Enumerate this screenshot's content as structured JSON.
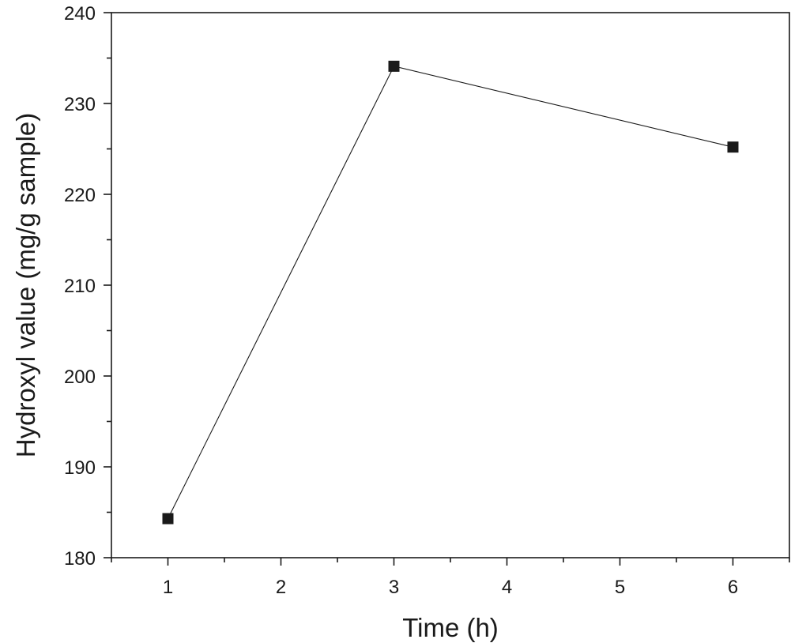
{
  "chart_data": {
    "type": "line",
    "title": "",
    "xlabel": "Time (h)",
    "ylabel": "Hydroxyl value (mg/g sample)",
    "xlim": [
      0.5,
      6.5
    ],
    "ylim": [
      180,
      240
    ],
    "x_ticks": [
      "1",
      "2",
      "3",
      "4",
      "5",
      "6"
    ],
    "y_ticks": [
      "180",
      "190",
      "200",
      "210",
      "220",
      "230",
      "240"
    ],
    "grid": false,
    "legend": "none",
    "marker": "square",
    "color": "#1a1a1a",
    "series": [
      {
        "x": [
          1,
          3,
          6
        ],
        "y": [
          184.3,
          234.1,
          225.2
        ]
      }
    ]
  }
}
